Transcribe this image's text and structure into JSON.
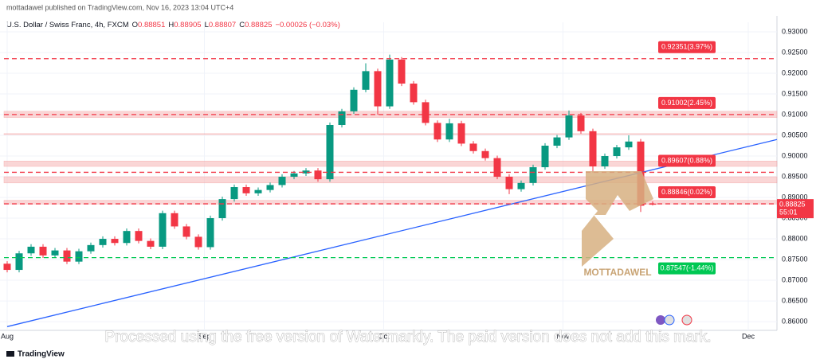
{
  "header": "mottadawel published on TradingView.com, Nov 16, 2023 13:04 UTC+4",
  "watermark": "Processed using the free version of Watermarkly. The paid version does not add this mark.",
  "footer": "TradingView",
  "logo_text": "MOTTADAWEL",
  "chart_data": {
    "type": "candlestick",
    "title": "U.S. Dollar / Swiss Franc, 4h, FXCM",
    "ohlc_prefixes": [
      "O",
      "H",
      "L",
      "C"
    ],
    "change": "−0.00026 (−0.03%)",
    "open": [
      0.874,
      0.8725,
      0.8765,
      0.8781,
      0.876,
      0.8772,
      0.8745,
      0.877,
      0.8785,
      0.88,
      0.879,
      0.8819,
      0.8795,
      0.8781,
      0.8862,
      0.883,
      0.8805,
      0.878,
      0.885,
      0.8896,
      0.8925,
      0.891,
      0.8918,
      0.893,
      0.895,
      0.8958,
      0.8965,
      0.8944,
      0.9075,
      0.9108,
      0.916,
      0.9205,
      0.912,
      0.9233,
      0.9175,
      0.913,
      0.908,
      0.904,
      0.9079,
      0.903,
      0.9012,
      0.8995,
      0.895,
      0.892,
      0.8935,
      0.8973,
      0.9025,
      0.9045,
      0.9098,
      0.906,
      0.8975,
      0.9,
      0.9021,
      0.9035,
      0.88851
    ],
    "high": [
      0.8746,
      0.8771,
      0.8787,
      0.8787,
      0.8778,
      0.8778,
      0.8776,
      0.8791,
      0.8806,
      0.8806,
      0.8825,
      0.8825,
      0.8801,
      0.8868,
      0.8868,
      0.8836,
      0.8811,
      0.8856,
      0.8902,
      0.8931,
      0.8931,
      0.8924,
      0.8936,
      0.8956,
      0.8964,
      0.8971,
      0.8971,
      0.9081,
      0.9114,
      0.9166,
      0.9224,
      0.9211,
      0.9245,
      0.9239,
      0.9181,
      0.9136,
      0.9086,
      0.909,
      0.9085,
      0.9036,
      0.9018,
      0.9001,
      0.8956,
      0.8941,
      0.8979,
      0.9031,
      0.9051,
      0.911,
      0.9104,
      0.9066,
      0.9006,
      0.9027,
      0.905,
      0.9041,
      0.88905
    ],
    "low": [
      0.8719,
      0.8719,
      0.8759,
      0.8754,
      0.8754,
      0.8739,
      0.8739,
      0.8764,
      0.8779,
      0.8784,
      0.8784,
      0.8789,
      0.8775,
      0.8775,
      0.8824,
      0.8799,
      0.8774,
      0.8774,
      0.8844,
      0.889,
      0.8904,
      0.8904,
      0.8912,
      0.8924,
      0.8944,
      0.8952,
      0.8938,
      0.8938,
      0.9069,
      0.9102,
      0.9154,
      0.91,
      0.9114,
      0.9169,
      0.9124,
      0.9074,
      0.9034,
      0.9034,
      0.9024,
      0.9006,
      0.8989,
      0.8944,
      0.8908,
      0.8914,
      0.8929,
      0.8967,
      0.9019,
      0.9039,
      0.9054,
      0.896,
      0.8969,
      0.8994,
      0.9015,
      0.8865,
      0.88807
    ],
    "close": [
      0.8725,
      0.8765,
      0.8781,
      0.876,
      0.8772,
      0.8745,
      0.877,
      0.8785,
      0.88,
      0.879,
      0.8819,
      0.8795,
      0.8781,
      0.8862,
      0.883,
      0.8805,
      0.878,
      0.885,
      0.8896,
      0.8925,
      0.891,
      0.8918,
      0.893,
      0.895,
      0.8958,
      0.8965,
      0.8944,
      0.9075,
      0.9108,
      0.916,
      0.9205,
      0.912,
      0.9233,
      0.9175,
      0.913,
      0.908,
      0.904,
      0.9079,
      0.903,
      0.9012,
      0.8995,
      0.895,
      0.892,
      0.8935,
      0.8973,
      0.9025,
      0.9045,
      0.9098,
      0.906,
      0.8975,
      0.9,
      0.9021,
      0.9035,
      0.888,
      0.88825
    ],
    "up_color": "#089981",
    "down_color": "#f23645",
    "xlim": [
      -0.6,
      64.4
    ],
    "xticks": [
      {
        "value": 0,
        "label": "Aug"
      },
      {
        "value": 16.5,
        "label": "Sep"
      },
      {
        "value": 31.5,
        "label": "Oct"
      },
      {
        "value": 46.5,
        "label": "Nov"
      },
      {
        "value": 62,
        "label": "Dec"
      }
    ],
    "ylim": [
      0.8579,
      0.9323
    ],
    "yticks": [
      {
        "value": 0.86,
        "label": "0.86000"
      },
      {
        "value": 0.865,
        "label": "0.86500"
      },
      {
        "value": 0.87,
        "label": "0.87000"
      },
      {
        "value": 0.875,
        "label": "0.87500"
      },
      {
        "value": 0.88,
        "label": "0.88000"
      },
      {
        "value": 0.885,
        "label": "0.88500"
      },
      {
        "value": 0.89,
        "label": "0.89000"
      },
      {
        "value": 0.895,
        "label": "0.89500"
      },
      {
        "value": 0.9,
        "label": "0.90000"
      },
      {
        "value": 0.905,
        "label": "0.90500"
      },
      {
        "value": 0.91,
        "label": "0.91000"
      },
      {
        "value": 0.915,
        "label": "0.91500"
      },
      {
        "value": 0.92,
        "label": "0.92000"
      },
      {
        "value": 0.925,
        "label": "0.92500"
      },
      {
        "value": 0.93,
        "label": "0.93000"
      }
    ],
    "grid": true,
    "levels": [
      {
        "value": 0.92351,
        "label": "0.92351(3.97%)",
        "color": "#f23645"
      },
      {
        "value": 0.91002,
        "label": "0.91002(2.45%)",
        "color": "#f23645"
      },
      {
        "value": 0.89607,
        "label": "0.89607(0.88%)",
        "color": "#f23645"
      },
      {
        "value": 0.88846,
        "label": "0.88846(0.02%)",
        "color": "#f23645"
      },
      {
        "value": 0.87547,
        "label": "0.87547(-1.44%)",
        "color": "#00c853"
      }
    ],
    "zones": [
      [
        0.9093,
        0.9108
      ],
      [
        0.9052,
        0.9054
      ],
      [
        0.8975,
        0.8988
      ],
      [
        0.8935,
        0.895
      ],
      [
        0.8884,
        0.8893
      ]
    ],
    "trendline": {
      "x": [
        0,
        64.4
      ],
      "values": [
        0.8588,
        0.904
      ],
      "color": "#2962ff"
    },
    "last_price": {
      "value": 0.88825,
      "countdown": "55:01"
    }
  }
}
